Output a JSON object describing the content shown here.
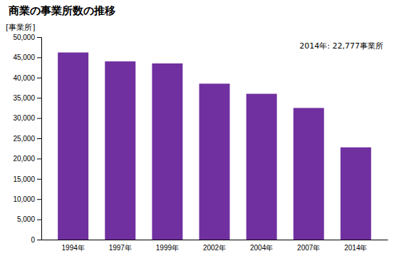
{
  "chart_data": {
    "type": "bar",
    "title": "商業の事業所数の推移",
    "ylabel": "[事業所]",
    "annotation": "2014年: 22,777事業所",
    "categories": [
      "1994年",
      "1997年",
      "1999年",
      "2002年",
      "2004年",
      "2007年",
      "2014年"
    ],
    "values": [
      46200,
      44000,
      43500,
      38500,
      36000,
      32500,
      22777
    ],
    "color": "#7030a0",
    "ylim": [
      0,
      50000
    ],
    "yticks": [
      0,
      {
        "value": 5000,
        "label": "5,000"
      },
      {
        "value": 10000,
        "label": "10,000"
      },
      {
        "value": 15000,
        "label": "15,000"
      },
      {
        "value": 20000,
        "label": "20,000"
      },
      {
        "value": 25000,
        "label": "25,000"
      },
      {
        "value": 30000,
        "label": "30,000"
      },
      {
        "value": 35000,
        "label": "35,000"
      },
      {
        "value": 40000,
        "label": "40,000"
      },
      {
        "value": 45000,
        "label": "45,000"
      },
      {
        "value": 50000,
        "label": "50,000"
      }
    ],
    "grid": false
  }
}
